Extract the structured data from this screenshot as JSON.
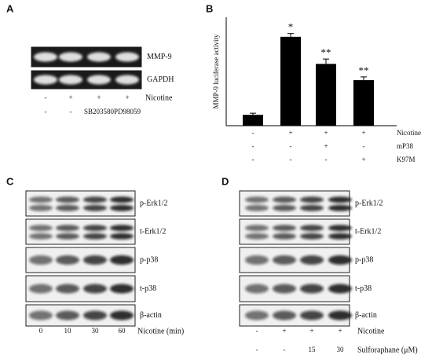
{
  "panels": [
    {
      "label": "A",
      "blots": [
        "MMP-9",
        "GAPDH"
      ],
      "conditions": [
        {
          "name": "Nicotine",
          "lanes": [
            "-",
            "+",
            "+",
            "+"
          ]
        },
        {
          "lanes": [
            "-",
            "-",
            "SB203580",
            "PD98059"
          ]
        }
      ]
    },
    {
      "label": "C",
      "blots": [
        "p-Erk1/2",
        "t-Erk1/2",
        "p-p38",
        "t-p38",
        "β-actin"
      ],
      "conditions": [
        {
          "name": "Nicotine (min)",
          "lanes": [
            "0",
            "10",
            "30",
            "60"
          ]
        }
      ]
    },
    {
      "label": "D",
      "blots": [
        "p-Erk1/2",
        "t-Erk1/2",
        "p-p38",
        "t-p38",
        "β-actin"
      ],
      "conditions": [
        {
          "name": "Nicotine",
          "lanes": [
            "-",
            "+",
            "+",
            "+"
          ]
        },
        {
          "name": "Sulforaphane (μM)",
          "lanes": [
            "-",
            "-",
            "15",
            "30"
          ]
        }
      ]
    }
  ],
  "chart_data": {
    "type": "bar",
    "label": "B",
    "ylabel": "MMP-9 luciferase activity",
    "values": [
      1,
      8.2,
      5.7,
      4.2
    ],
    "errors": [
      0.15,
      0.3,
      0.45,
      0.3
    ],
    "annotations": [
      null,
      "*",
      "**",
      "**"
    ],
    "color": "#000000",
    "ylim": [
      0,
      10
    ],
    "conditions": [
      {
        "name": "Nicotine",
        "lanes": [
          "-",
          "+",
          "+",
          "+"
        ]
      },
      {
        "name": "mP38",
        "lanes": [
          "-",
          "-",
          "+",
          "-"
        ]
      },
      {
        "name": "K97M",
        "lanes": [
          "-",
          "-",
          "-",
          "+"
        ]
      }
    ]
  }
}
